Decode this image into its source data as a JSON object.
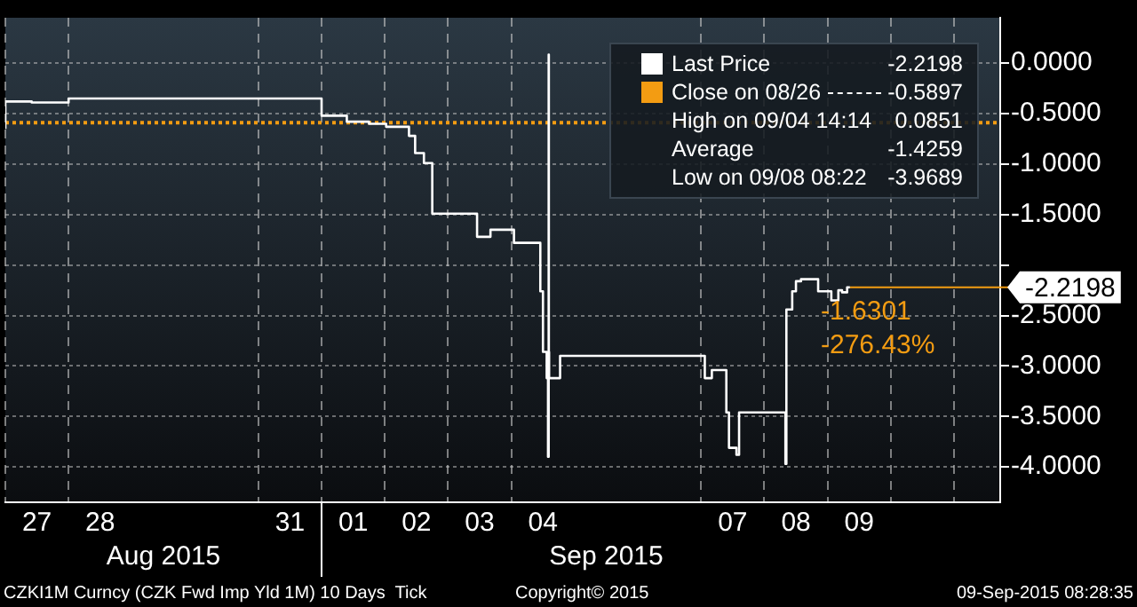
{
  "chart_data": {
    "type": "step",
    "legend": "top right",
    "grid": true,
    "xlim": [
      "2015-08-27T00:00",
      "2015-09-11T17:30"
    ],
    "xticks": [
      {
        "value": "2015-08-27T00:00",
        "label": null
      },
      {
        "value": "2015-08-27T12:00",
        "label": "27"
      },
      {
        "value": "2015-08-28T00:00",
        "label": null
      },
      {
        "value": "2015-08-28T12:00",
        "label": "28"
      },
      {
        "value": "2015-08-31T00:00",
        "label": null
      },
      {
        "value": "2015-08-31T12:00",
        "label": "31"
      },
      {
        "value": "2015-09-01T00:00",
        "label": null
      },
      {
        "value": "2015-09-01T12:00",
        "label": "01"
      },
      {
        "value": "2015-09-02T00:00",
        "label": null
      },
      {
        "value": "2015-09-02T12:00",
        "label": "02"
      },
      {
        "value": "2015-09-03T00:00",
        "label": null
      },
      {
        "value": "2015-09-03T12:00",
        "label": "03"
      },
      {
        "value": "2015-09-04T00:00",
        "label": null
      },
      {
        "value": "2015-09-04T12:00",
        "label": "04"
      },
      {
        "value": "2015-09-07T00:00",
        "label": null
      },
      {
        "value": "2015-09-07T12:00",
        "label": "07"
      },
      {
        "value": "2015-09-08T00:00",
        "label": null
      },
      {
        "value": "2015-09-08T12:00",
        "label": "08"
      },
      {
        "value": "2015-09-09T00:00",
        "label": null
      },
      {
        "value": "2015-09-09T12:00",
        "label": "09"
      },
      {
        "value": "2015-09-10T00:00",
        "label": null
      },
      {
        "value": "2015-09-11T00:00",
        "label": null
      }
    ],
    "ylim": [
      -4.35,
      0.45
    ],
    "yticks": [
      {
        "value": 0,
        "label": "0.0000"
      },
      {
        "value": -0.5,
        "label": "-0.5000"
      },
      {
        "value": -1,
        "label": "-1.0000"
      },
      {
        "value": -1.5,
        "label": "-1.5000"
      },
      {
        "value": -2,
        "label": null
      },
      {
        "value": -2.5,
        "label": "-2.5000"
      },
      {
        "value": -3,
        "label": "-3.0000"
      },
      {
        "value": -3.5,
        "label": "-3.5000"
      },
      {
        "value": -4,
        "label": "-4.0000"
      }
    ],
    "series": [
      {
        "name": "Last Price",
        "color": "#ffffff",
        "x": [
          "2015-08-27T00:00",
          "2015-08-27T10:00",
          "2015-08-28T00:00",
          "2015-09-01T00:00",
          "2015-09-01T09:35",
          "2015-09-01T18:00",
          "2015-09-02T00:30",
          "2015-09-02T09:10",
          "2015-09-02T11:30",
          "2015-09-02T14:50",
          "2015-09-02T18:00",
          "2015-09-03T11:00",
          "2015-09-03T16:05",
          "2015-09-04T01:00",
          "2015-09-04T11:00",
          "2015-09-04T12:00",
          "2015-09-04T13:25",
          "2015-09-04T13:55",
          "2015-09-04T14:10",
          "2015-09-04T14:14",
          "2015-09-04T14:20",
          "2015-09-04T18:30",
          "2015-09-07T01:25",
          "2015-09-07T04:05",
          "2015-09-07T09:35",
          "2015-09-07T10:35",
          "2015-09-07T13:25",
          "2015-09-07T14:25",
          "2015-09-08T00:30",
          "2015-09-08T08:00",
          "2015-09-08T08:22",
          "2015-09-08T10:35",
          "2015-09-08T12:00",
          "2015-09-08T13:55",
          "2015-09-08T20:25",
          "2015-09-09T01:25",
          "2015-09-09T04:05",
          "2015-09-09T05:30",
          "2015-09-09T07:25",
          "2015-09-09T08:28"
        ],
        "values": [
          -0.65,
          -0.38,
          -0.39,
          -0.35,
          -0.52,
          -0.58,
          -0.6,
          -0.63,
          -0.72,
          -0.89,
          -0.99,
          -1.49,
          -1.72,
          -1.65,
          -1.78,
          -2.26,
          -2.86,
          -3.12,
          -3.9,
          0.0851,
          -2.86,
          -3.12,
          -2.9,
          -3.12,
          -3.04,
          -3.46,
          -3.81,
          -3.88,
          -3.46,
          -3.46,
          -3.9689,
          -2.44,
          -2.26,
          -2.16,
          -2.14,
          -2.26,
          -2.35,
          -2.25,
          -2.27,
          -2.2198
        ]
      }
    ],
    "ref_lines": [
      {
        "axis": "y",
        "value": -0.5897,
        "label": "Close on 08/26",
        "color": "#f39c12",
        "line_style": "dotted"
      },
      {
        "axis": "y",
        "value": -2.2198,
        "label": "-2.2198",
        "color": "#f39c12",
        "line_style": "solid"
      }
    ],
    "annotations": [
      "-2.2198",
      "-0.5897",
      "High on 09/04 14:14",
      "0.0851",
      "Average",
      "-1.4259",
      "Low on 09/08 08:22",
      "-3.9689",
      "-1.6301",
      "-276.43%",
      "Aug 2015",
      "Sep 2015",
      "CZKI1M Curncy (CZK Fwd Imp Yld 1M) 10 Days  Tick",
      "Copyright© 2015",
      "09-Sep-2015 08:28:35"
    ]
  }
}
